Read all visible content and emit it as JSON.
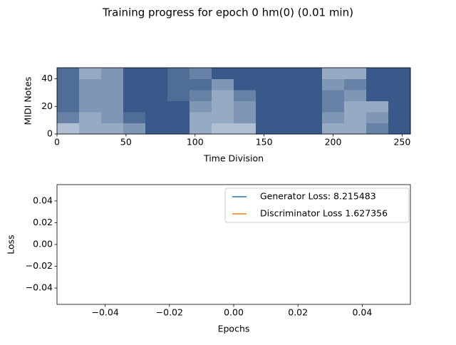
{
  "title": "Training progress for epoch 0 hm(0) (0.01 min)",
  "chart_data": [
    {
      "type": "heatmap",
      "xlabel": "Time Division",
      "ylabel": "MIDI Notes",
      "xlim": [
        0,
        256
      ],
      "ylim": [
        0,
        48
      ],
      "xticks": [
        0,
        50,
        100,
        150,
        200,
        250
      ],
      "yticks": [
        0,
        20,
        40
      ],
      "colors": [
        "#f7fbff",
        "#08306b"
      ],
      "z": [
        [
          0.3,
          0.4,
          0.4,
          0.5,
          0.8,
          0.8,
          0.4,
          0.3,
          0.3,
          0.8,
          0.8,
          0.8,
          0.4,
          0.4,
          0.6,
          0.8
        ],
        [
          0.6,
          0.4,
          0.5,
          0.7,
          0.8,
          0.8,
          0.4,
          0.4,
          0.5,
          0.8,
          0.8,
          0.8,
          0.5,
          0.4,
          0.5,
          0.8
        ],
        [
          0.7,
          0.5,
          0.5,
          0.8,
          0.8,
          0.8,
          0.5,
          0.4,
          0.5,
          0.8,
          0.8,
          0.8,
          0.6,
          0.4,
          0.4,
          0.8
        ],
        [
          0.7,
          0.5,
          0.5,
          0.8,
          0.8,
          0.7,
          0.6,
          0.4,
          0.6,
          0.8,
          0.8,
          0.8,
          0.6,
          0.5,
          0.8,
          0.8
        ],
        [
          0.7,
          0.5,
          0.5,
          0.8,
          0.8,
          0.7,
          0.7,
          0.5,
          0.8,
          0.8,
          0.8,
          0.8,
          0.5,
          0.6,
          0.8,
          0.8
        ],
        [
          0.7,
          0.4,
          0.5,
          0.8,
          0.8,
          0.7,
          0.6,
          0.8,
          0.8,
          0.8,
          0.8,
          0.8,
          0.4,
          0.4,
          0.8,
          0.8
        ]
      ]
    },
    {
      "type": "line",
      "xlabel": "Epochs",
      "ylabel": "Loss",
      "xlim": [
        -0.055,
        0.055
      ],
      "ylim": [
        -0.055,
        0.055
      ],
      "xticks": [
        {
          "value": -0.04,
          "label": "−0.04"
        },
        {
          "value": -0.02,
          "label": "−0.02"
        },
        {
          "value": 0,
          "label": "0.00"
        },
        {
          "value": 0.02,
          "label": "0.02"
        },
        {
          "value": 0.04,
          "label": "0.04"
        }
      ],
      "yticks": [
        {
          "value": -0.04,
          "label": "−0.04"
        },
        {
          "value": -0.02,
          "label": "−0.02"
        },
        {
          "value": 0,
          "label": "0.00"
        },
        {
          "value": 0.02,
          "label": "0.02"
        },
        {
          "value": 0.04,
          "label": "0.04"
        }
      ],
      "x": [],
      "legend": "upper right",
      "series": [
        {
          "name": "Generator Loss: 8.215483",
          "color": "#1f77b4",
          "values": []
        },
        {
          "name": "Discriminator Loss 1.627356",
          "color": "#ff7f0e",
          "values": []
        }
      ]
    }
  ]
}
